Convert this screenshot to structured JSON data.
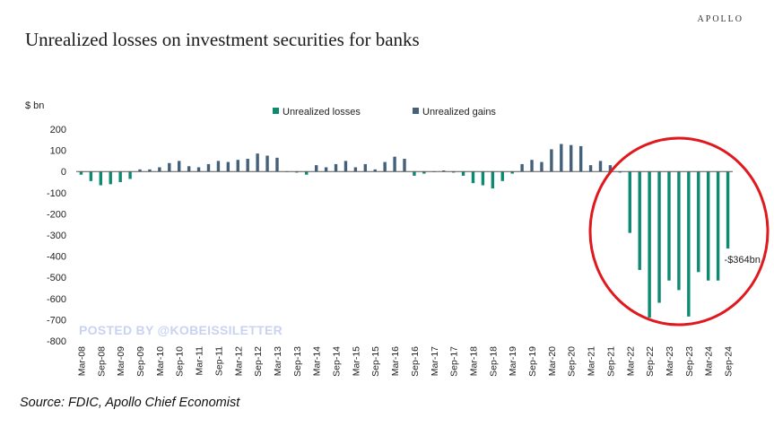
{
  "header": {
    "brand": "APOLLO"
  },
  "footer": {
    "source": "Source: FDIC, Apollo Chief Economist"
  },
  "watermark": "POSTED BY @KOBEISSILETTER",
  "colors": {
    "losses": "#0e8a73",
    "gains": "#44617b",
    "circle": "#e0191f"
  },
  "chart_data": {
    "type": "bar",
    "title": "Unrealized losses on investment securities for banks",
    "ylabel": "$ bn",
    "ylim": [
      -800,
      200
    ],
    "yticks": [
      200,
      100,
      0,
      -100,
      -200,
      -300,
      -400,
      -500,
      -600,
      -700,
      -800
    ],
    "legend": {
      "position": "top-center",
      "entries": [
        "Unrealized losses",
        "Unrealized gains"
      ]
    },
    "x_tick_labels": [
      "Mar-08",
      "Sep-08",
      "Mar-09",
      "Sep-09",
      "Mar-10",
      "Sep-10",
      "Mar-11",
      "Sep-11",
      "Mar-12",
      "Sep-12",
      "Mar-13",
      "Sep-13",
      "Mar-14",
      "Sep-14",
      "Mar-15",
      "Sep-15",
      "Mar-16",
      "Sep-16",
      "Mar-17",
      "Sep-17",
      "Mar-18",
      "Sep-18",
      "Mar-19",
      "Sep-19",
      "Mar-20",
      "Sep-20",
      "Mar-21",
      "Sep-21",
      "Mar-22",
      "Sep-22",
      "Mar-23",
      "Sep-23",
      "Mar-24",
      "Sep-24"
    ],
    "x": [
      "Mar-08",
      "Jun-08",
      "Sep-08",
      "Dec-08",
      "Mar-09",
      "Jun-09",
      "Sep-09",
      "Dec-09",
      "Mar-10",
      "Jun-10",
      "Sep-10",
      "Dec-10",
      "Mar-11",
      "Jun-11",
      "Sep-11",
      "Dec-11",
      "Mar-12",
      "Jun-12",
      "Sep-12",
      "Dec-12",
      "Mar-13",
      "Jun-13",
      "Sep-13",
      "Dec-13",
      "Mar-14",
      "Jun-14",
      "Sep-14",
      "Dec-14",
      "Mar-15",
      "Jun-15",
      "Sep-15",
      "Dec-15",
      "Mar-16",
      "Jun-16",
      "Sep-16",
      "Dec-16",
      "Mar-17",
      "Jun-17",
      "Sep-17",
      "Dec-17",
      "Mar-18",
      "Jun-18",
      "Sep-18",
      "Dec-18",
      "Mar-19",
      "Jun-19",
      "Sep-19",
      "Dec-19",
      "Mar-20",
      "Jun-20",
      "Sep-20",
      "Dec-20",
      "Mar-21",
      "Jun-21",
      "Sep-21",
      "Dec-21",
      "Mar-22",
      "Jun-22",
      "Sep-22",
      "Dec-22",
      "Mar-23",
      "Jun-23",
      "Sep-23",
      "Dec-23",
      "Mar-24",
      "Jun-24",
      "Sep-24"
    ],
    "values": [
      -15,
      -45,
      -65,
      -60,
      -50,
      -35,
      10,
      10,
      20,
      40,
      50,
      25,
      20,
      35,
      50,
      45,
      55,
      60,
      85,
      75,
      65,
      0,
      -5,
      -15,
      30,
      20,
      35,
      50,
      20,
      35,
      10,
      45,
      70,
      60,
      -20,
      -10,
      0,
      5,
      -5,
      -20,
      -55,
      -65,
      -80,
      -45,
      -10,
      35,
      55,
      45,
      105,
      130,
      125,
      120,
      30,
      50,
      30,
      -5,
      -290,
      -465,
      -690,
      -620,
      -515,
      -560,
      -685,
      -475,
      -515,
      -515,
      -364
    ],
    "annotations": [
      {
        "x": "Sep-24",
        "text": "-$364bn"
      }
    ]
  }
}
